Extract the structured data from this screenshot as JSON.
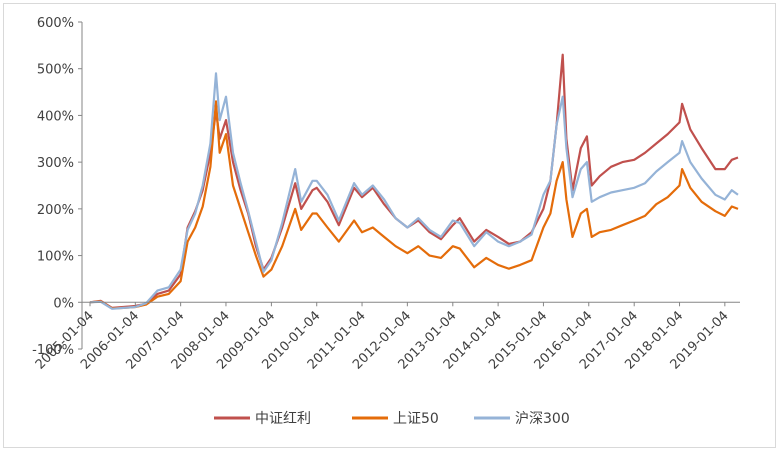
{
  "chart_data": {
    "type": "line",
    "title": "",
    "xlabel": "",
    "ylabel": "",
    "ylim": [
      -100,
      600
    ],
    "yticks": [
      "-100%",
      "0%",
      "100%",
      "200%",
      "300%",
      "400%",
      "500%",
      "600%"
    ],
    "xticks": [
      "2005-01-04",
      "2006-01-04",
      "2007-01-04",
      "2008-01-04",
      "2009-01-04",
      "2010-01-04",
      "2011-01-04",
      "2012-01-04",
      "2013-01-04",
      "2014-01-04",
      "2015-01-04",
      "2016-01-04",
      "2017-01-04",
      "2018-01-04",
      "2019-01-04"
    ],
    "grid": false,
    "legend_position": "bottom",
    "series": [
      {
        "name": "中证红利",
        "color": "#c0504d",
        "points": [
          [
            "2005-01-04",
            0
          ],
          [
            "2005-04-01",
            3
          ],
          [
            "2005-07-01",
            -12
          ],
          [
            "2005-10-01",
            -10
          ],
          [
            "2006-01-04",
            -8
          ],
          [
            "2006-04-01",
            -3
          ],
          [
            "2006-07-01",
            18
          ],
          [
            "2006-10-01",
            25
          ],
          [
            "2007-01-04",
            60
          ],
          [
            "2007-03-01",
            160
          ],
          [
            "2007-05-01",
            195
          ],
          [
            "2007-07-01",
            240
          ],
          [
            "2007-09-01",
            320
          ],
          [
            "2007-10-16",
            410
          ],
          [
            "2007-11-15",
            350
          ],
          [
            "2008-01-04",
            390
          ],
          [
            "2008-03-01",
            300
          ],
          [
            "2008-05-01",
            240
          ],
          [
            "2008-07-01",
            190
          ],
          [
            "2008-09-01",
            120
          ],
          [
            "2008-11-01",
            70
          ],
          [
            "2009-01-04",
            95
          ],
          [
            "2009-04-01",
            160
          ],
          [
            "2009-07-15",
            255
          ],
          [
            "2009-09-01",
            200
          ],
          [
            "2009-12-01",
            240
          ],
          [
            "2010-01-04",
            245
          ],
          [
            "2010-04-01",
            215
          ],
          [
            "2010-07-01",
            165
          ],
          [
            "2010-11-01",
            245
          ],
          [
            "2011-01-04",
            225
          ],
          [
            "2011-04-01",
            245
          ],
          [
            "2011-07-01",
            210
          ],
          [
            "2011-10-01",
            180
          ],
          [
            "2012-01-04",
            160
          ],
          [
            "2012-04-01",
            175
          ],
          [
            "2012-07-01",
            150
          ],
          [
            "2012-10-01",
            135
          ],
          [
            "2013-01-04",
            165
          ],
          [
            "2013-03-01",
            180
          ],
          [
            "2013-06-25",
            130
          ],
          [
            "2013-10-01",
            155
          ],
          [
            "2014-01-04",
            140
          ],
          [
            "2014-04-01",
            125
          ],
          [
            "2014-07-01",
            130
          ],
          [
            "2014-10-01",
            150
          ],
          [
            "2015-01-04",
            200
          ],
          [
            "2015-03-01",
            260
          ],
          [
            "2015-04-20",
            380
          ],
          [
            "2015-06-08",
            530
          ],
          [
            "2015-07-08",
            350
          ],
          [
            "2015-08-26",
            240
          ],
          [
            "2015-11-01",
            330
          ],
          [
            "2015-12-20",
            355
          ],
          [
            "2016-01-28",
            250
          ],
          [
            "2016-04-01",
            270
          ],
          [
            "2016-07-01",
            290
          ],
          [
            "2016-10-01",
            300
          ],
          [
            "2017-01-04",
            305
          ],
          [
            "2017-04-01",
            320
          ],
          [
            "2017-07-01",
            340
          ],
          [
            "2017-10-01",
            360
          ],
          [
            "2018-01-04",
            385
          ],
          [
            "2018-01-25",
            425
          ],
          [
            "2018-04-01",
            370
          ],
          [
            "2018-07-01",
            330
          ],
          [
            "2018-10-20",
            285
          ],
          [
            "2019-01-04",
            285
          ],
          [
            "2019-03-01",
            305
          ],
          [
            "2019-04-20",
            310
          ]
        ]
      },
      {
        "name": "上证50",
        "color": "#e46c0a",
        "points": [
          [
            "2005-01-04",
            0
          ],
          [
            "2005-04-01",
            2
          ],
          [
            "2005-07-01",
            -13
          ],
          [
            "2005-10-01",
            -12
          ],
          [
            "2006-01-04",
            -10
          ],
          [
            "2006-04-01",
            -5
          ],
          [
            "2006-07-01",
            12
          ],
          [
            "2006-10-01",
            18
          ],
          [
            "2007-01-04",
            45
          ],
          [
            "2007-03-01",
            130
          ],
          [
            "2007-05-01",
            160
          ],
          [
            "2007-07-01",
            205
          ],
          [
            "2007-09-01",
            290
          ],
          [
            "2007-10-16",
            430
          ],
          [
            "2007-11-15",
            320
          ],
          [
            "2008-01-04",
            360
          ],
          [
            "2008-03-01",
            250
          ],
          [
            "2008-05-01",
            200
          ],
          [
            "2008-07-01",
            150
          ],
          [
            "2008-09-01",
            100
          ],
          [
            "2008-11-01",
            55
          ],
          [
            "2009-01-04",
            70
          ],
          [
            "2009-04-01",
            120
          ],
          [
            "2009-07-15",
            200
          ],
          [
            "2009-09-01",
            155
          ],
          [
            "2009-12-01",
            190
          ],
          [
            "2010-01-04",
            190
          ],
          [
            "2010-04-01",
            160
          ],
          [
            "2010-07-01",
            130
          ],
          [
            "2010-11-01",
            175
          ],
          [
            "2011-01-04",
            150
          ],
          [
            "2011-04-01",
            160
          ],
          [
            "2011-07-01",
            140
          ],
          [
            "2011-10-01",
            120
          ],
          [
            "2012-01-04",
            105
          ],
          [
            "2012-04-01",
            120
          ],
          [
            "2012-07-01",
            100
          ],
          [
            "2012-10-01",
            95
          ],
          [
            "2013-01-04",
            120
          ],
          [
            "2013-03-01",
            115
          ],
          [
            "2013-06-25",
            75
          ],
          [
            "2013-10-01",
            95
          ],
          [
            "2014-01-04",
            80
          ],
          [
            "2014-04-01",
            72
          ],
          [
            "2014-07-01",
            80
          ],
          [
            "2014-10-01",
            90
          ],
          [
            "2015-01-04",
            160
          ],
          [
            "2015-03-01",
            190
          ],
          [
            "2015-04-20",
            260
          ],
          [
            "2015-06-08",
            300
          ],
          [
            "2015-07-08",
            220
          ],
          [
            "2015-08-26",
            140
          ],
          [
            "2015-11-01",
            190
          ],
          [
            "2015-12-20",
            200
          ],
          [
            "2016-01-28",
            140
          ],
          [
            "2016-04-01",
            150
          ],
          [
            "2016-07-01",
            155
          ],
          [
            "2016-10-01",
            165
          ],
          [
            "2017-01-04",
            175
          ],
          [
            "2017-04-01",
            185
          ],
          [
            "2017-07-01",
            210
          ],
          [
            "2017-10-01",
            225
          ],
          [
            "2018-01-04",
            250
          ],
          [
            "2018-01-25",
            285
          ],
          [
            "2018-04-01",
            245
          ],
          [
            "2018-07-01",
            215
          ],
          [
            "2018-10-20",
            195
          ],
          [
            "2019-01-04",
            185
          ],
          [
            "2019-03-01",
            205
          ],
          [
            "2019-04-20",
            200
          ]
        ]
      },
      {
        "name": "沪深300",
        "color": "#95b3d7",
        "points": [
          [
            "2005-01-04",
            0
          ],
          [
            "2005-04-01",
            1
          ],
          [
            "2005-07-01",
            -14
          ],
          [
            "2005-10-01",
            -12
          ],
          [
            "2006-01-04",
            -10
          ],
          [
            "2006-04-01",
            -2
          ],
          [
            "2006-07-01",
            25
          ],
          [
            "2006-10-01",
            32
          ],
          [
            "2007-01-04",
            70
          ],
          [
            "2007-03-01",
            155
          ],
          [
            "2007-05-01",
            190
          ],
          [
            "2007-07-01",
            250
          ],
          [
            "2007-09-01",
            340
          ],
          [
            "2007-10-16",
            490
          ],
          [
            "2007-11-15",
            390
          ],
          [
            "2008-01-04",
            440
          ],
          [
            "2008-03-01",
            320
          ],
          [
            "2008-05-01",
            255
          ],
          [
            "2008-07-01",
            195
          ],
          [
            "2008-09-01",
            130
          ],
          [
            "2008-11-01",
            65
          ],
          [
            "2009-01-04",
            90
          ],
          [
            "2009-04-01",
            170
          ],
          [
            "2009-07-15",
            285
          ],
          [
            "2009-09-01",
            215
          ],
          [
            "2009-12-01",
            260
          ],
          [
            "2010-01-04",
            260
          ],
          [
            "2010-04-01",
            230
          ],
          [
            "2010-07-01",
            175
          ],
          [
            "2010-11-01",
            255
          ],
          [
            "2011-01-04",
            230
          ],
          [
            "2011-04-01",
            250
          ],
          [
            "2011-07-01",
            220
          ],
          [
            "2011-10-01",
            180
          ],
          [
            "2012-01-04",
            160
          ],
          [
            "2012-04-01",
            180
          ],
          [
            "2012-07-01",
            155
          ],
          [
            "2012-10-01",
            140
          ],
          [
            "2013-01-04",
            175
          ],
          [
            "2013-03-01",
            170
          ],
          [
            "2013-06-25",
            120
          ],
          [
            "2013-10-01",
            150
          ],
          [
            "2014-01-04",
            130
          ],
          [
            "2014-04-01",
            120
          ],
          [
            "2014-07-01",
            130
          ],
          [
            "2014-10-01",
            145
          ],
          [
            "2015-01-04",
            230
          ],
          [
            "2015-03-01",
            260
          ],
          [
            "2015-04-20",
            380
          ],
          [
            "2015-06-08",
            440
          ],
          [
            "2015-07-08",
            330
          ],
          [
            "2015-08-26",
            225
          ],
          [
            "2015-11-01",
            285
          ],
          [
            "2015-12-20",
            300
          ],
          [
            "2016-01-28",
            215
          ],
          [
            "2016-04-01",
            225
          ],
          [
            "2016-07-01",
            235
          ],
          [
            "2016-10-01",
            240
          ],
          [
            "2017-01-04",
            245
          ],
          [
            "2017-04-01",
            255
          ],
          [
            "2017-07-01",
            280
          ],
          [
            "2017-10-01",
            300
          ],
          [
            "2018-01-04",
            320
          ],
          [
            "2018-01-25",
            345
          ],
          [
            "2018-04-01",
            300
          ],
          [
            "2018-07-01",
            265
          ],
          [
            "2018-10-20",
            230
          ],
          [
            "2019-01-04",
            220
          ],
          [
            "2019-03-01",
            240
          ],
          [
            "2019-04-20",
            230
          ]
        ]
      }
    ]
  }
}
